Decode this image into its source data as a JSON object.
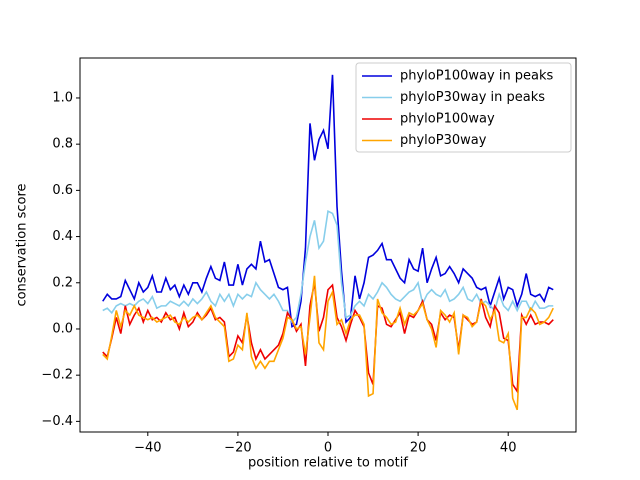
{
  "chart_data": {
    "type": "line",
    "xlabel": "position relative to motif",
    "ylabel": "conservation score",
    "x": [
      -50,
      -49,
      -48,
      -47,
      -46,
      -45,
      -44,
      -43,
      -42,
      -41,
      -40,
      -39,
      -38,
      -37,
      -36,
      -35,
      -34,
      -33,
      -32,
      -31,
      -30,
      -29,
      -28,
      -27,
      -26,
      -25,
      -24,
      -23,
      -22,
      -21,
      -20,
      -19,
      -18,
      -17,
      -16,
      -15,
      -14,
      -13,
      -12,
      -11,
      -10,
      -9,
      -8,
      -7,
      -6,
      -5,
      -4,
      -3,
      -2,
      -1,
      0,
      1,
      2,
      3,
      4,
      5,
      6,
      7,
      8,
      9,
      10,
      11,
      12,
      13,
      14,
      15,
      16,
      17,
      18,
      19,
      20,
      21,
      22,
      23,
      24,
      25,
      26,
      27,
      28,
      29,
      30,
      31,
      32,
      33,
      34,
      35,
      36,
      37,
      38,
      39,
      40,
      41,
      42,
      43,
      44,
      45,
      46,
      47,
      48,
      49,
      50
    ],
    "series": [
      {
        "name": "phyloP100way in peaks",
        "color": "#0000dd",
        "values": [
          0.12,
          0.15,
          0.13,
          0.13,
          0.14,
          0.21,
          0.17,
          0.13,
          0.2,
          0.16,
          0.18,
          0.23,
          0.16,
          0.16,
          0.22,
          0.17,
          0.19,
          0.14,
          0.19,
          0.15,
          0.2,
          0.2,
          0.16,
          0.22,
          0.27,
          0.22,
          0.21,
          0.29,
          0.19,
          0.19,
          0.28,
          0.19,
          0.26,
          0.28,
          0.26,
          0.38,
          0.29,
          0.3,
          0.24,
          0.18,
          0.17,
          0.18,
          0.01,
          0.02,
          0.12,
          0.35,
          0.89,
          0.73,
          0.82,
          0.86,
          0.78,
          1.1,
          0.53,
          0.25,
          0.03,
          0.05,
          0.23,
          0.13,
          0.2,
          0.31,
          0.32,
          0.34,
          0.37,
          0.3,
          0.3,
          0.26,
          0.22,
          0.2,
          0.3,
          0.26,
          0.25,
          0.35,
          0.2,
          0.26,
          0.31,
          0.23,
          0.24,
          0.27,
          0.24,
          0.2,
          0.26,
          0.24,
          0.22,
          0.18,
          0.17,
          0.18,
          0.1,
          0.16,
          0.22,
          0.13,
          0.18,
          0.17,
          0.1,
          0.15,
          0.24,
          0.15,
          0.14,
          0.15,
          0.12,
          0.18,
          0.17
        ]
      },
      {
        "name": "phyloP30way in peaks",
        "color": "#87ceeb",
        "values": [
          0.08,
          0.09,
          0.07,
          0.1,
          0.11,
          0.1,
          0.11,
          0.1,
          0.12,
          0.13,
          0.11,
          0.14,
          0.09,
          0.1,
          0.1,
          0.12,
          0.11,
          0.1,
          0.12,
          0.1,
          0.13,
          0.11,
          0.13,
          0.16,
          0.12,
          0.1,
          0.15,
          0.12,
          0.15,
          0.1,
          0.15,
          0.13,
          0.15,
          0.14,
          0.2,
          0.17,
          0.15,
          0.13,
          0.15,
          0.12,
          0.08,
          0.08,
          0.03,
          0.05,
          0.15,
          0.29,
          0.4,
          0.47,
          0.35,
          0.38,
          0.51,
          0.5,
          0.45,
          0.2,
          0.05,
          0.06,
          0.1,
          0.12,
          0.1,
          0.15,
          0.13,
          0.16,
          0.2,
          0.18,
          0.15,
          0.13,
          0.12,
          0.14,
          0.16,
          0.17,
          0.2,
          0.11,
          0.15,
          0.17,
          0.15,
          0.14,
          0.17,
          0.12,
          0.13,
          0.15,
          0.18,
          0.13,
          0.12,
          0.15,
          0.11,
          0.12,
          0.1,
          0.08,
          0.15,
          0.1,
          0.08,
          0.12,
          0.08,
          0.12,
          0.12,
          0.08,
          0.12,
          0.09,
          0.09,
          0.1,
          0.1
        ]
      },
      {
        "name": "phyloP100way",
        "color": "#ee0000",
        "values": [
          -0.1,
          -0.12,
          -0.04,
          0.05,
          -0.02,
          0.1,
          0.02,
          0.06,
          0.09,
          0.03,
          0.08,
          0.04,
          0.05,
          0.03,
          0.07,
          0.04,
          0.05,
          0.0,
          0.07,
          0.01,
          0.03,
          0.07,
          0.04,
          0.06,
          0.09,
          0.04,
          0.05,
          0.03,
          -0.12,
          -0.1,
          -0.03,
          -0.06,
          0.06,
          -0.06,
          -0.13,
          -0.09,
          -0.13,
          -0.11,
          -0.09,
          -0.07,
          -0.02,
          0.07,
          0.04,
          -0.01,
          0.02,
          -0.16,
          0.1,
          0.2,
          -0.01,
          0.05,
          0.17,
          0.19,
          0.05,
          0.01,
          -0.05,
          0.02,
          0.08,
          0.05,
          0.01,
          -0.19,
          -0.24,
          0.1,
          0.09,
          0.02,
          0.01,
          0.04,
          0.07,
          -0.02,
          0.06,
          0.05,
          0.08,
          0.12,
          0.04,
          0.02,
          -0.05,
          0.07,
          0.04,
          0.06,
          0.05,
          -0.09,
          0.06,
          0.04,
          0.02,
          0.03,
          0.13,
          0.05,
          0.01,
          0.1,
          0.07,
          -0.04,
          -0.05,
          -0.24,
          -0.27,
          0.06,
          0.02,
          0.06,
          0.02,
          0.03,
          0.03,
          0.02,
          0.04
        ]
      },
      {
        "name": "phyloP30way",
        "color": "#ffa500",
        "values": [
          -0.11,
          -0.13,
          -0.03,
          0.08,
          0.01,
          0.08,
          0.06,
          0.1,
          0.06,
          0.05,
          0.04,
          0.05,
          0.03,
          0.04,
          0.05,
          0.06,
          0.03,
          0.02,
          0.05,
          0.03,
          0.05,
          0.06,
          0.04,
          0.07,
          0.1,
          0.05,
          0.03,
          0.01,
          -0.14,
          -0.13,
          -0.07,
          -0.09,
          0.07,
          -0.12,
          -0.17,
          -0.14,
          -0.17,
          -0.14,
          -0.14,
          -0.09,
          -0.04,
          0.05,
          0.04,
          0.0,
          0.01,
          -0.11,
          0.05,
          0.23,
          -0.06,
          -0.09,
          0.12,
          0.16,
          0.02,
          0.04,
          -0.02,
          0.04,
          0.06,
          0.06,
          0.02,
          -0.29,
          -0.28,
          0.13,
          0.07,
          0.05,
          0.02,
          0.03,
          0.09,
          0.02,
          0.07,
          0.06,
          0.08,
          0.11,
          0.04,
          0.0,
          -0.08,
          0.08,
          0.06,
          0.03,
          0.07,
          -0.11,
          0.06,
          0.05,
          0.01,
          0.03,
          0.12,
          0.1,
          0.04,
          0.08,
          -0.05,
          -0.06,
          -0.02,
          -0.3,
          -0.35,
          0.05,
          0.05,
          0.09,
          0.07,
          0.02,
          0.03,
          0.05,
          0.09
        ]
      }
    ],
    "xlim": [
      -55.05,
      55.05
    ],
    "ylim": [
      -0.446,
      1.173
    ],
    "xticks": [
      {
        "value": -40,
        "label": "−40"
      },
      {
        "value": -20,
        "label": "−20"
      },
      0,
      20,
      40
    ],
    "yticks": [
      {
        "value": -0.4,
        "label": "−0.4"
      },
      {
        "value": -0.2,
        "label": "−0.2"
      },
      {
        "value": 0,
        "label": "0.0"
      },
      0.2,
      0.4,
      0.6,
      0.8,
      {
        "value": 1,
        "label": "1.0"
      }
    ],
    "legend": "upper right",
    "grid": false
  }
}
